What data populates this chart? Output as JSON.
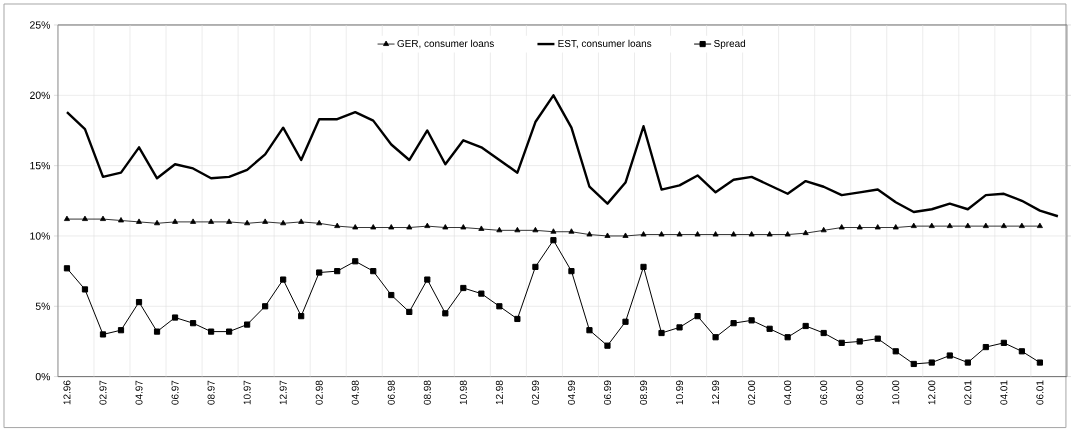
{
  "chart_data": {
    "type": "line",
    "categories": [
      "12.96",
      null,
      "02.97",
      null,
      "04.97",
      null,
      "06.97",
      null,
      "08.97",
      null,
      "10.97",
      null,
      "12.97",
      null,
      "02.98",
      null,
      "04.98",
      null,
      "06.98",
      null,
      "08.98",
      null,
      "10.98",
      null,
      "12.98",
      null,
      "02.99",
      null,
      "04.99",
      null,
      "06.99",
      null,
      "08.99",
      null,
      "10.99",
      null,
      "12.99",
      null,
      "02.00",
      null,
      "04.00",
      null,
      "06.00",
      null,
      "08.00",
      null,
      "10.00",
      null,
      "12.00",
      null,
      "02.01",
      null,
      "04.01",
      null,
      "06.01",
      null
    ],
    "series": [
      {
        "name": "GER, consumer loans",
        "color": "#000000",
        "marker": "triangle",
        "values": [
          11.2,
          11.2,
          11.2,
          11.1,
          11.0,
          10.9,
          11.0,
          11.0,
          11.0,
          11.0,
          10.9,
          11.0,
          10.9,
          11.0,
          10.9,
          10.7,
          10.6,
          10.6,
          10.6,
          10.6,
          10.7,
          10.6,
          10.6,
          10.5,
          10.4,
          10.4,
          10.4,
          10.3,
          10.3,
          10.1,
          10.0,
          10.0,
          10.1,
          10.1,
          10.1,
          10.1,
          10.1,
          10.1,
          10.1,
          10.1,
          10.1,
          10.2,
          10.4,
          10.6,
          10.6,
          10.6,
          10.6,
          10.7,
          10.7,
          10.7,
          10.7,
          10.7,
          10.7,
          10.7,
          10.7,
          null
        ]
      },
      {
        "name": "EST, consumer loans",
        "color": "#000000",
        "marker": "none",
        "values": [
          18.8,
          17.6,
          14.2,
          14.5,
          16.3,
          14.1,
          15.1,
          14.8,
          14.1,
          14.2,
          14.7,
          15.8,
          17.7,
          15.4,
          18.3,
          18.3,
          18.8,
          18.2,
          16.5,
          15.4,
          17.5,
          15.1,
          16.8,
          16.3,
          15.4,
          14.5,
          18.1,
          20.0,
          17.7,
          13.5,
          12.3,
          13.8,
          17.8,
          13.3,
          13.6,
          14.3,
          13.1,
          14.0,
          14.2,
          13.6,
          13.0,
          13.9,
          13.5,
          12.9,
          13.1,
          13.3,
          12.4,
          11.7,
          11.9,
          12.3,
          11.9,
          12.9,
          13.0,
          12.5,
          11.8,
          11.4
        ]
      },
      {
        "name": "Spread",
        "color": "#000000",
        "marker": "square",
        "values": [
          7.7,
          6.2,
          3.0,
          3.3,
          5.3,
          3.2,
          4.2,
          3.8,
          3.2,
          3.2,
          3.7,
          5.0,
          6.9,
          4.3,
          7.4,
          7.5,
          8.2,
          7.5,
          5.8,
          4.6,
          6.9,
          4.5,
          6.3,
          5.9,
          5.0,
          4.1,
          7.8,
          9.7,
          7.5,
          3.3,
          2.2,
          3.9,
          7.8,
          3.1,
          3.5,
          4.3,
          2.8,
          3.8,
          4.0,
          3.4,
          2.8,
          3.6,
          3.1,
          2.4,
          2.5,
          2.7,
          1.8,
          0.9,
          1.0,
          1.5,
          1.0,
          2.1,
          2.4,
          1.8,
          1.0,
          null
        ]
      }
    ],
    "ylim": [
      0,
      25
    ],
    "yticks": [
      {
        "value": 0,
        "label": "0%"
      },
      {
        "value": 5,
        "label": "5%"
      },
      {
        "value": 10,
        "label": "10%"
      },
      {
        "value": 15,
        "label": "15%"
      },
      {
        "value": 20,
        "label": "20%"
      },
      {
        "value": 25,
        "label": "25%"
      }
    ],
    "grid": true,
    "legend": "top"
  }
}
